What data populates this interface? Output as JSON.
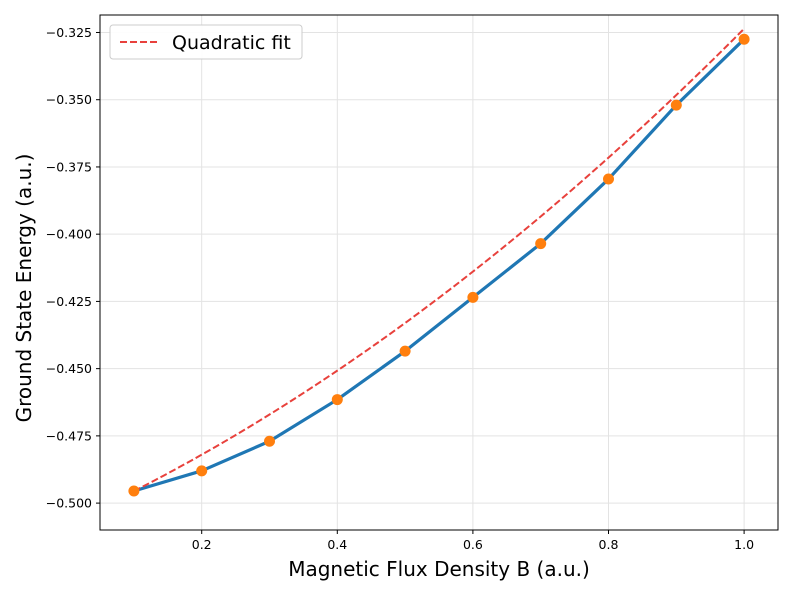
{
  "chart_data": {
    "type": "line",
    "title": "",
    "xlabel": "Magnetic Flux Density B (a.u.)",
    "ylabel": "Ground State Energy (a.u.)",
    "xlim": [
      0.05,
      1.05
    ],
    "ylim": [
      -0.51,
      -0.3185
    ],
    "grid": true,
    "legend_position": "top-left",
    "x_ticks": [
      0.2,
      0.4,
      0.6,
      0.8,
      1.0
    ],
    "x_tick_labels": [
      "0.2",
      "0.4",
      "0.6",
      "0.8",
      "1.0"
    ],
    "y_ticks": [
      -0.5,
      -0.475,
      -0.45,
      -0.425,
      -0.4,
      -0.375,
      -0.35,
      -0.325
    ],
    "y_tick_labels": [
      "−0.500",
      "−0.475",
      "−0.450",
      "−0.425",
      "−0.400",
      "−0.375",
      "−0.350",
      "−0.325"
    ],
    "series": [
      {
        "style": "line-with-markers",
        "line_color": "#1f77b4",
        "marker_color": "#ff7f0e",
        "x": [
          0.1,
          0.2,
          0.3,
          0.4,
          0.5,
          0.6,
          0.7,
          0.8,
          0.9,
          1.0
        ],
        "y": [
          -0.4955,
          -0.488,
          -0.477,
          -0.4615,
          -0.4435,
          -0.4235,
          -0.4035,
          -0.3795,
          -0.352,
          -0.3275
        ]
      },
      {
        "name": "Quadratic fit",
        "style": "dashed",
        "line_color": "#e8413c",
        "fit_coefficients": [
          0.0695,
          0.1146,
          -0.5077
        ],
        "x_range": [
          0.1,
          1.0
        ]
      }
    ]
  }
}
